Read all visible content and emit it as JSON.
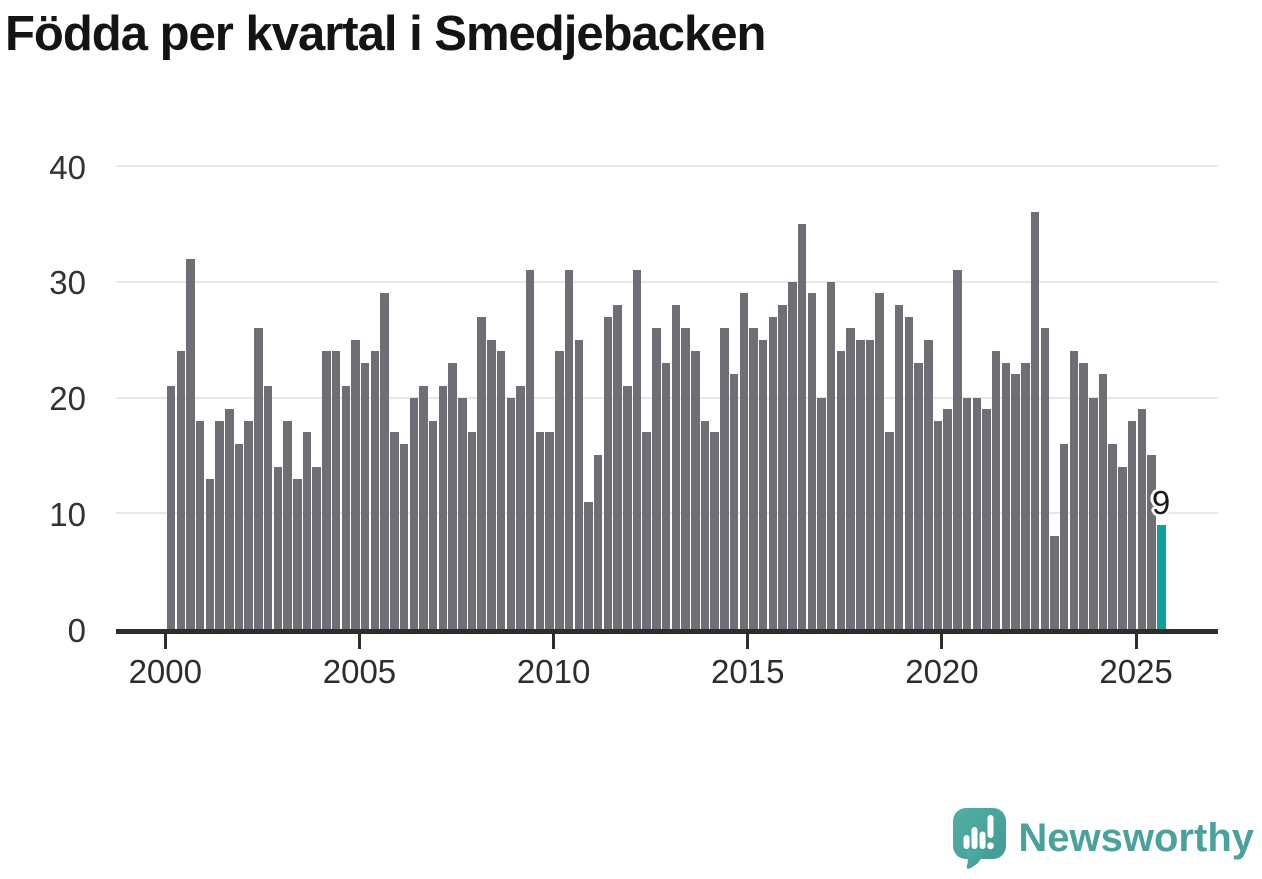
{
  "title": "Födda per kvartal i Smedjebacken",
  "annotation": {
    "label": "9"
  },
  "logo": {
    "text": "Newsworthy"
  },
  "colors": {
    "bar": "#6f6e74",
    "highlight": "#119e9c",
    "axis": "#2d2d2d",
    "gridline": "#e8e8e8",
    "tick_label": "#2d2d2d",
    "logo_teal": "#4ba19b",
    "background": "#ffffff"
  },
  "chart_data": {
    "type": "bar",
    "title": "Födda per kvartal i Smedjebacken",
    "xlabel": "",
    "ylabel": "",
    "ylim": [
      0,
      40
    ],
    "y_ticks": [
      0,
      10,
      20,
      30,
      40
    ],
    "x_tick_labels": [
      "2000",
      "2005",
      "2010",
      "2015",
      "2020",
      "2025"
    ],
    "grid": "horizontal",
    "legend": "none",
    "bars_per_year": 4,
    "series": [
      {
        "year": 2000,
        "values": [
          21,
          24,
          32,
          18
        ]
      },
      {
        "year": 2001,
        "values": [
          13,
          18,
          19,
          16
        ]
      },
      {
        "year": 2002,
        "values": [
          18,
          26,
          21,
          14
        ]
      },
      {
        "year": 2003,
        "values": [
          18,
          13,
          17,
          14
        ]
      },
      {
        "year": 2004,
        "values": [
          24,
          24,
          21,
          25
        ]
      },
      {
        "year": 2005,
        "values": [
          23,
          24,
          29,
          17
        ]
      },
      {
        "year": 2006,
        "values": [
          16,
          20,
          21,
          18
        ]
      },
      {
        "year": 2007,
        "values": [
          21,
          23,
          20,
          17
        ]
      },
      {
        "year": 2008,
        "values": [
          27,
          25,
          24,
          20
        ]
      },
      {
        "year": 2009,
        "values": [
          21,
          31,
          17,
          17
        ]
      },
      {
        "year": 2010,
        "values": [
          24,
          31,
          25,
          11
        ]
      },
      {
        "year": 2011,
        "values": [
          15,
          27,
          28,
          21
        ]
      },
      {
        "year": 2012,
        "values": [
          31,
          17,
          26,
          23
        ]
      },
      {
        "year": 2013,
        "values": [
          28,
          26,
          24,
          18
        ]
      },
      {
        "year": 2014,
        "values": [
          17,
          26,
          22,
          29
        ]
      },
      {
        "year": 2015,
        "values": [
          26,
          25,
          27,
          28
        ]
      },
      {
        "year": 2016,
        "values": [
          30,
          35,
          29,
          20
        ]
      },
      {
        "year": 2017,
        "values": [
          30,
          24,
          26,
          25
        ]
      },
      {
        "year": 2018,
        "values": [
          25,
          29,
          17,
          28
        ]
      },
      {
        "year": 2019,
        "values": [
          27,
          23,
          25,
          18
        ]
      },
      {
        "year": 2020,
        "values": [
          19,
          31,
          20,
          20
        ]
      },
      {
        "year": 2021,
        "values": [
          19,
          24,
          23,
          22
        ]
      },
      {
        "year": 2022,
        "values": [
          23,
          36,
          26,
          8
        ]
      },
      {
        "year": 2023,
        "values": [
          16,
          24,
          23,
          20
        ]
      },
      {
        "year": 2024,
        "values": [
          22,
          16,
          14,
          18
        ]
      },
      {
        "year": 2025,
        "values": [
          19,
          15,
          9
        ]
      }
    ],
    "highlight": {
      "position": "last",
      "quarter": "2025 Q3",
      "value": 9,
      "label": "9"
    }
  }
}
